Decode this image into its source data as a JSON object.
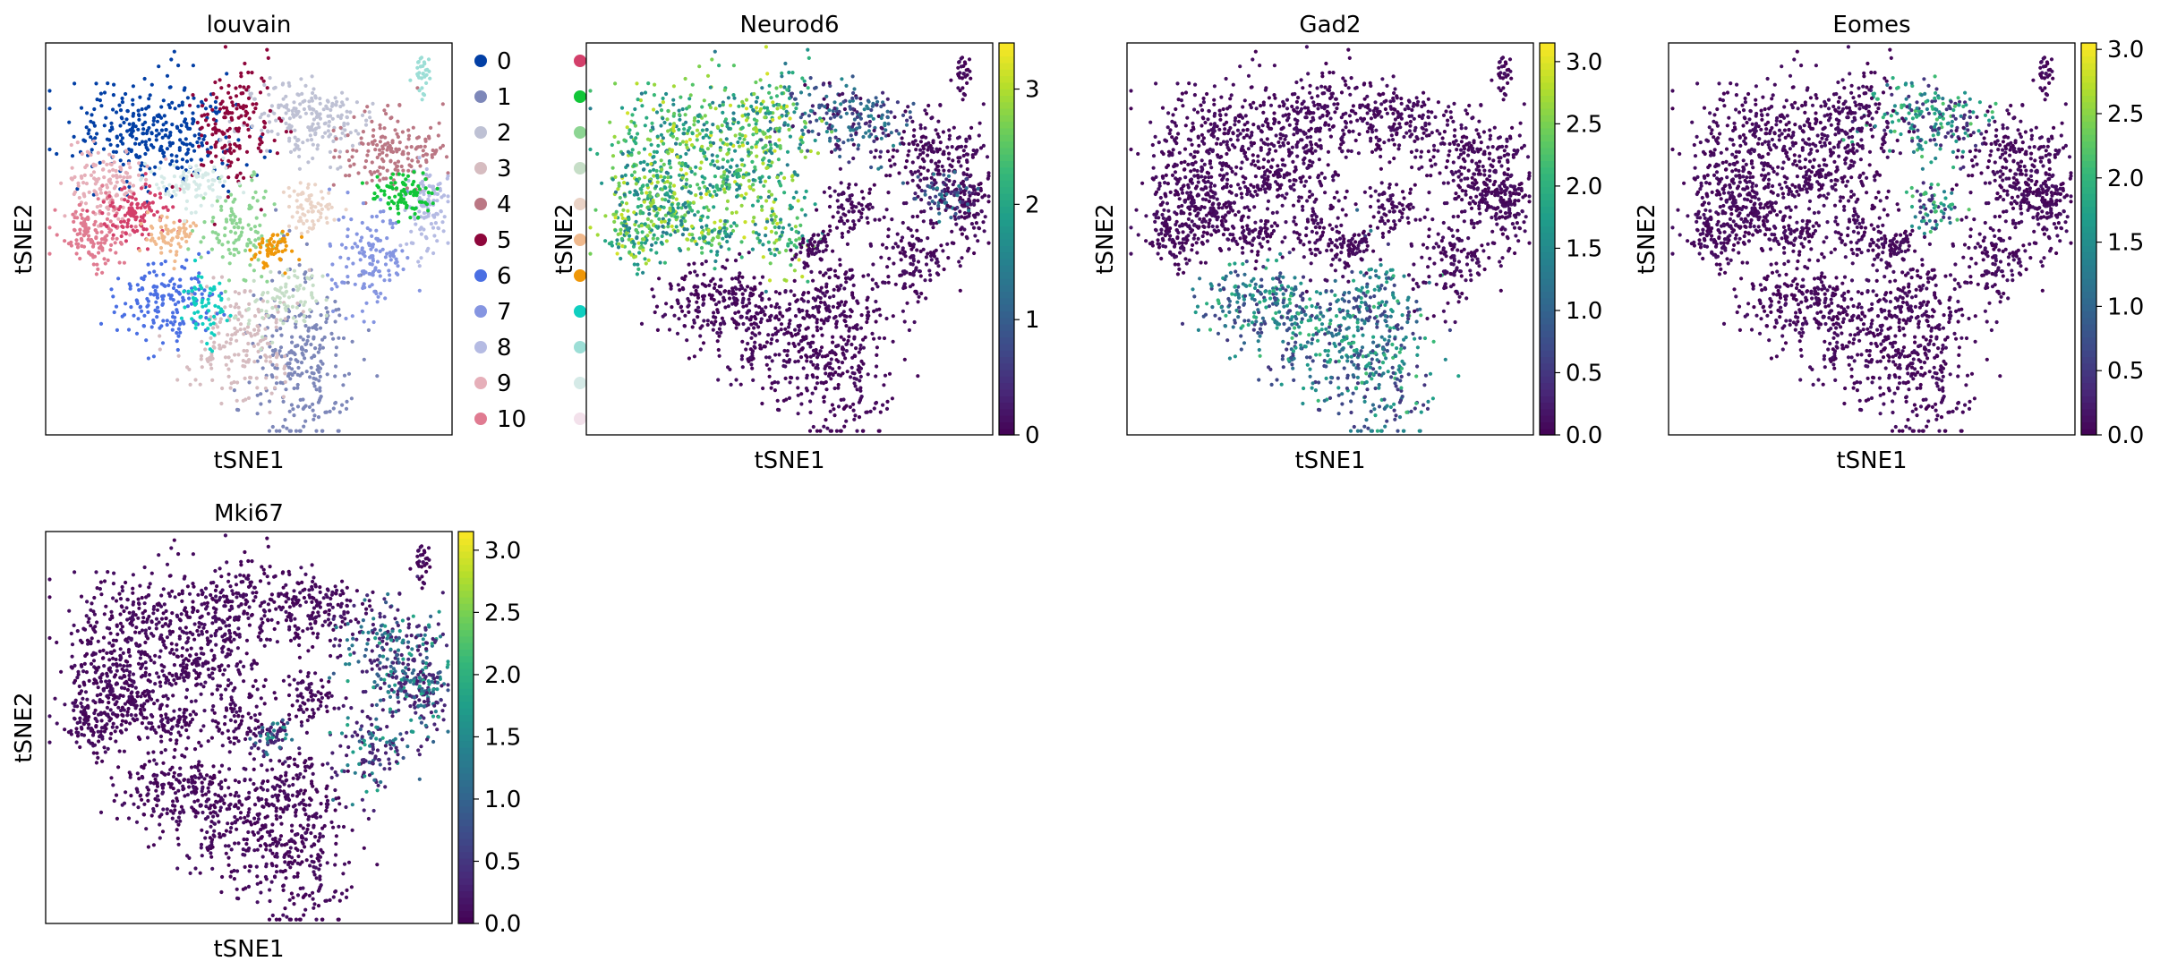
{
  "colormap": "viridis",
  "panels": [
    {
      "title": "louvain",
      "xlabel": "tSNE1",
      "ylabel": "tSNE2",
      "kind": "categorical",
      "legend": {
        "placement": "right",
        "categories": [
          {
            "label": "0",
            "color": "#023fa5"
          },
          {
            "label": "1",
            "color": "#7d87b9"
          },
          {
            "label": "2",
            "color": "#bec1d4"
          },
          {
            "label": "3",
            "color": "#d6bcc0"
          },
          {
            "label": "4",
            "color": "#bb7784"
          },
          {
            "label": "5",
            "color": "#8e063b"
          },
          {
            "label": "6",
            "color": "#4a6fe3"
          },
          {
            "label": "7",
            "color": "#8595e1"
          },
          {
            "label": "8",
            "color": "#b5bbe3"
          },
          {
            "label": "9",
            "color": "#e6afb9"
          },
          {
            "label": "10",
            "color": "#e07b91"
          }
        ],
        "extra_colors": [
          "#d33f6a",
          "#11c638",
          "#8dd593",
          "#c6dec7",
          "#ead3c6",
          "#f0b98d",
          "#ef9708",
          "#0fcfc0",
          "#9cded6",
          "#d5eae7",
          "#f3e1eb"
        ]
      }
    },
    {
      "title": "Neurod6",
      "xlabel": "tSNE1",
      "ylabel": "tSNE2",
      "kind": "expression",
      "colorbar": {
        "min": 0,
        "max": 3.4,
        "ticks": [
          "0",
          "1",
          "2",
          "3"
        ]
      }
    },
    {
      "title": "Gad2",
      "xlabel": "tSNE1",
      "ylabel": "tSNE2",
      "kind": "expression",
      "colorbar": {
        "min": 0,
        "max": 3.15,
        "ticks": [
          "0.0",
          "0.5",
          "1.0",
          "1.5",
          "2.0",
          "2.5",
          "3.0"
        ]
      }
    },
    {
      "title": "Eomes",
      "xlabel": "tSNE1",
      "ylabel": "tSNE2",
      "kind": "expression",
      "colorbar": {
        "min": 0,
        "max": 3.05,
        "ticks": [
          "0.0",
          "0.5",
          "1.0",
          "1.5",
          "2.0",
          "2.5",
          "3.0"
        ]
      }
    },
    {
      "title": "Mki67",
      "xlabel": "tSNE1",
      "ylabel": "tSNE2",
      "kind": "expression",
      "colorbar": {
        "min": 0,
        "max": 3.15,
        "ticks": [
          "0.0",
          "0.5",
          "1.0",
          "1.5",
          "2.0",
          "2.5",
          "3.0"
        ]
      }
    }
  ],
  "chart_data": [
    {
      "type": "scatter",
      "title": "louvain",
      "xlabel": "tSNE1",
      "ylabel": "tSNE2",
      "legend": [
        "0",
        "1",
        "2",
        "3",
        "4",
        "5",
        "6",
        "7",
        "8",
        "9",
        "10"
      ],
      "clusters": [
        {
          "label": "0",
          "center": [
            -0.45,
            0.55
          ]
        },
        {
          "label": "1",
          "center": [
            0.25,
            -0.62
          ]
        },
        {
          "label": "2",
          "center": [
            0.25,
            0.62
          ]
        },
        {
          "label": "3",
          "center": [
            -0.05,
            -0.52
          ]
        },
        {
          "label": "4",
          "center": [
            0.72,
            0.42
          ]
        },
        {
          "label": "5",
          "center": [
            -0.1,
            0.55
          ]
        },
        {
          "label": "6",
          "center": [
            -0.4,
            -0.3
          ]
        },
        {
          "label": "7",
          "center": [
            0.6,
            -0.12
          ]
        },
        {
          "label": "8",
          "center": [
            0.88,
            0.18
          ]
        },
        {
          "label": "9",
          "center": [
            -0.7,
            0.25
          ]
        },
        {
          "label": "10",
          "center": [
            -0.72,
            0.0
          ]
        }
      ]
    },
    {
      "type": "scatter",
      "title": "Neurod6",
      "xlabel": "tSNE1",
      "ylabel": "tSNE2",
      "color_range": [
        0,
        3.4
      ],
      "colorbar_ticks": [
        0,
        1,
        2,
        3
      ]
    },
    {
      "type": "scatter",
      "title": "Gad2",
      "xlabel": "tSNE1",
      "ylabel": "tSNE2",
      "color_range": [
        0,
        3.15
      ],
      "colorbar_ticks": [
        0.0,
        0.5,
        1.0,
        1.5,
        2.0,
        2.5,
        3.0
      ]
    },
    {
      "type": "scatter",
      "title": "Eomes",
      "xlabel": "tSNE1",
      "ylabel": "tSNE2",
      "color_range": [
        0,
        3.05
      ],
      "colorbar_ticks": [
        0.0,
        0.5,
        1.0,
        1.5,
        2.0,
        2.5,
        3.0
      ]
    },
    {
      "type": "scatter",
      "title": "Mki67",
      "xlabel": "tSNE1",
      "ylabel": "tSNE2",
      "color_range": [
        0,
        3.15
      ],
      "colorbar_ticks": [
        0.0,
        0.5,
        1.0,
        1.5,
        2.0,
        2.5,
        3.0
      ]
    }
  ]
}
